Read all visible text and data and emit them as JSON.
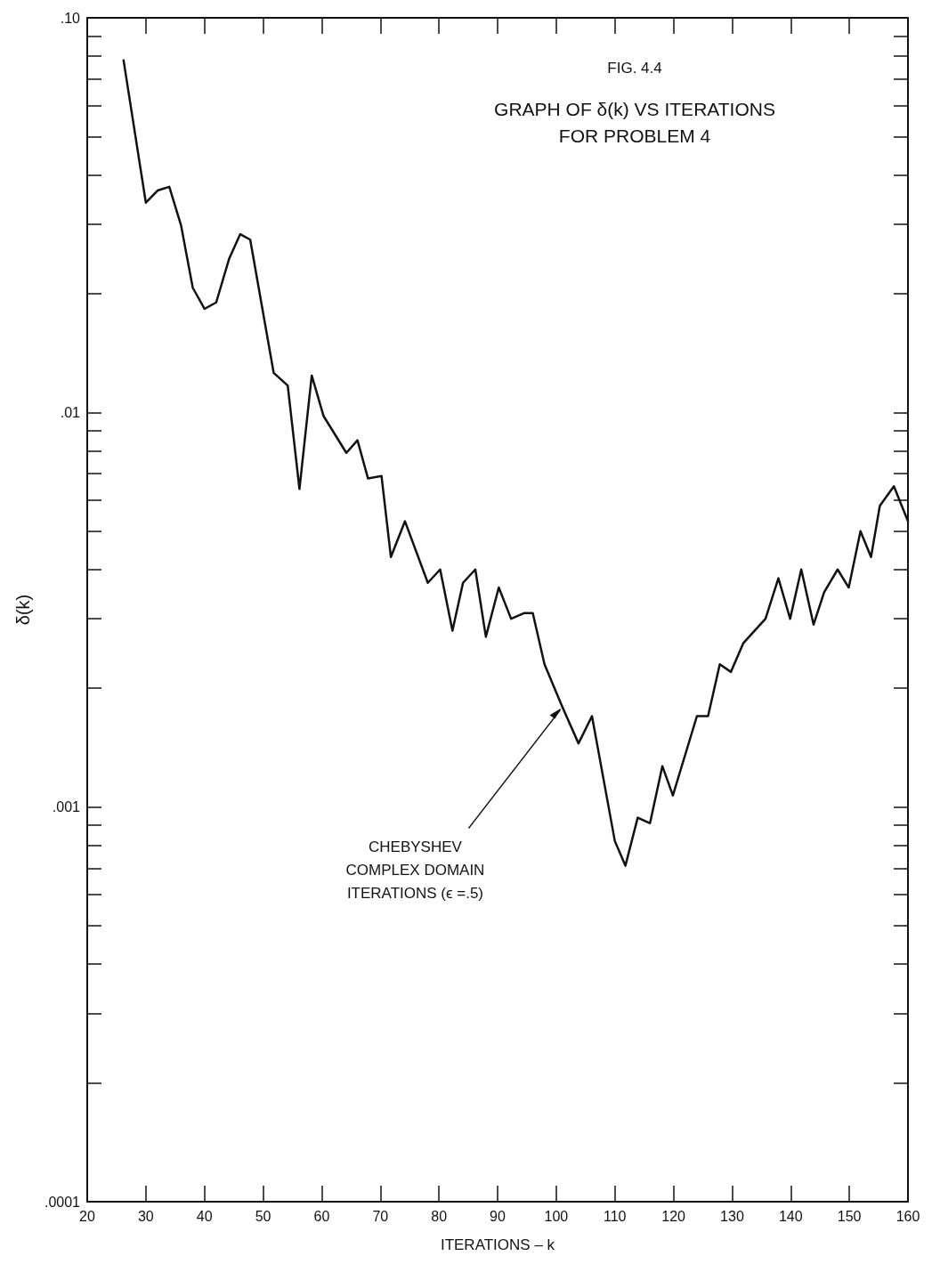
{
  "chart_data": {
    "type": "line",
    "title": "FIG. 4.4",
    "subtitle": "GRAPH OF δ(k) VS ITERATIONS\nFOR PROBLEM 4",
    "xlabel": "ITERATIONS – k",
    "ylabel": "δ(k)",
    "x": [
      26.2,
      30,
      32,
      34,
      36,
      38,
      40,
      42,
      44.2,
      46.1,
      47.8,
      51.8,
      54.2,
      56.2,
      58.3,
      60.3,
      64.2,
      66.1,
      67.9,
      70.2,
      71.8,
      74.2,
      78.1,
      80.2,
      82.3,
      84.1,
      86.2,
      88,
      90.2,
      92.3,
      94.5,
      96,
      98,
      101,
      103.8,
      106.1,
      110,
      111.8,
      113.9,
      116,
      118.1,
      119.9,
      124,
      125.9,
      127.9,
      129.8,
      131.9,
      135.7,
      137.9,
      139.9,
      141.8,
      143.9,
      145.7,
      148,
      149.9,
      151.9,
      153.7,
      155.2,
      157.6,
      160
    ],
    "series": [
      {
        "color": "#111111",
        "values": [
          0.078,
          0.034,
          0.0365,
          0.0373,
          0.0298,
          0.0207,
          0.0183,
          0.019,
          0.0245,
          0.0283,
          0.0274,
          0.0126,
          0.0117,
          0.0064,
          0.0124,
          0.0098,
          0.0079,
          0.0085,
          0.0068,
          0.0069,
          0.0043,
          0.0053,
          0.0037,
          0.004,
          0.0028,
          0.0037,
          0.004,
          0.0027,
          0.0036,
          0.003,
          0.0031,
          0.0031,
          0.0023,
          0.0018,
          0.00145,
          0.0017,
          0.00082,
          0.00071,
          0.00094,
          0.00091,
          0.00127,
          0.00107,
          0.0017,
          0.0017,
          0.0023,
          0.0022,
          0.0026,
          0.003,
          0.0038,
          0.003,
          0.004,
          0.0029,
          0.0035,
          0.004,
          0.0036,
          0.005,
          0.0043,
          0.0058,
          0.0065,
          0.0053
        ]
      }
    ],
    "annotations": [
      {
        "text": "CHEBYSHEV\nCOMPLEX DOMAIN\nITERATIONS (ϵ =.5)",
        "x": 101,
        "y": 0.0018
      }
    ],
    "log": "y",
    "marker": "none",
    "line_style": "solid",
    "xlim": [
      20,
      160
    ],
    "xticks": [
      20,
      30,
      40,
      50,
      60,
      70,
      80,
      90,
      100,
      110,
      120,
      130,
      140,
      150,
      160
    ],
    "ylim": [
      0.0001,
      0.1
    ],
    "yticks": [
      {
        "value": 0.0001,
        "label": ".0001"
      },
      {
        "value": 0.0002,
        "label": null
      },
      {
        "value": 0.0003,
        "label": null
      },
      {
        "value": 0.0004,
        "label": null
      },
      {
        "value": 0.0005,
        "label": null
      },
      {
        "value": 0.0006,
        "label": null
      },
      {
        "value": 0.0007,
        "label": null
      },
      {
        "value": 0.0008,
        "label": null
      },
      {
        "value": 0.0009,
        "label": null
      },
      {
        "value": 0.001,
        "label": ".001"
      },
      {
        "value": 0.002,
        "label": null
      },
      {
        "value": 0.003,
        "label": null
      },
      {
        "value": 0.004,
        "label": null
      },
      {
        "value": 0.005,
        "label": null
      },
      {
        "value": 0.006,
        "label": null
      },
      {
        "value": 0.007,
        "label": null
      },
      {
        "value": 0.008,
        "label": null
      },
      {
        "value": 0.009,
        "label": null
      },
      {
        "value": 0.01,
        "label": ".01"
      },
      {
        "value": 0.02,
        "label": null
      },
      {
        "value": 0.03,
        "label": null
      },
      {
        "value": 0.04,
        "label": null
      },
      {
        "value": 0.05,
        "label": null
      },
      {
        "value": 0.06,
        "label": null
      },
      {
        "value": 0.07,
        "label": null
      },
      {
        "value": 0.08,
        "label": null
      },
      {
        "value": 0.09,
        "label": null
      },
      {
        "value": 0.1,
        "label": ".10"
      }
    ]
  }
}
